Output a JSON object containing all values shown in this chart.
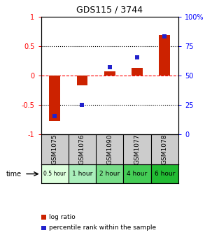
{
  "title": "GDS115 / 3744",
  "samples": [
    "GSM1075",
    "GSM1076",
    "GSM1090",
    "GSM1077",
    "GSM1078"
  ],
  "time_labels": [
    "0.5 hour",
    "1 hour",
    "2 hour",
    "4 hour",
    "6 hour"
  ],
  "time_colors": [
    "#ddffdd",
    "#aaeebb",
    "#77dd88",
    "#44cc55",
    "#22bb33"
  ],
  "log_ratios": [
    -0.78,
    -0.17,
    0.07,
    0.12,
    0.68
  ],
  "percentile_ranks": [
    15,
    25,
    57,
    65,
    83
  ],
  "bar_color": "#cc2200",
  "dot_color": "#2222cc",
  "ylim_left": [
    -1,
    1
  ],
  "ylim_right": [
    0,
    100
  ],
  "yticks_left": [
    -1,
    -0.5,
    0,
    0.5,
    1
  ],
  "yticks_right": [
    0,
    25,
    50,
    75,
    100
  ],
  "ytick_labels_left": [
    "-1",
    "-0.5",
    "0",
    "0.5",
    "1"
  ],
  "ytick_labels_right": [
    "0",
    "25",
    "50",
    "75",
    "100%"
  ],
  "hlines_dotted": [
    0.5,
    -0.5
  ],
  "hline_zero": 0,
  "legend_log_ratio": "log ratio",
  "legend_percentile": "percentile rank within the sample",
  "sample_row_color": "#cccccc",
  "bar_width": 0.4
}
